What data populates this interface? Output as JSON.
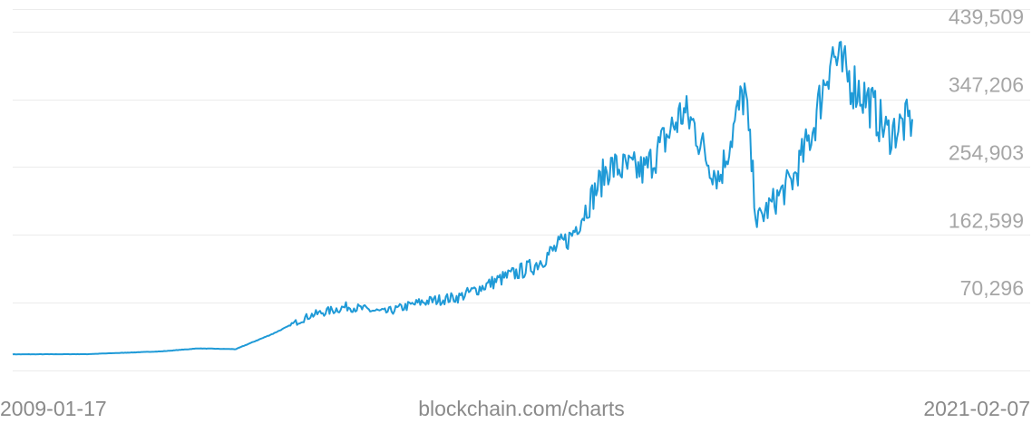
{
  "chart_data": {
    "type": "line",
    "title": "",
    "xlabel": "",
    "ylabel": "",
    "x_start_label": "2009-01-17",
    "x_end_label": "2021-02-07",
    "source_label": "blockchain.com/charts",
    "ylim": [
      -22007,
      470000
    ],
    "yticks": [
      70296,
      162599,
      254903,
      347206,
      439509
    ],
    "ytick_labels": [
      "70,296",
      "162,599",
      "254,903",
      "347,206",
      "439,509"
    ],
    "grid": true,
    "legend": "none",
    "line_color": "#1f9ad7",
    "x": [
      "2009-01",
      "2010-01",
      "2011-01",
      "2011-07",
      "2012-01",
      "2012-07",
      "2013-01",
      "2013-07",
      "2014-01",
      "2014-07",
      "2015-01",
      "2015-07",
      "2016-01",
      "2016-07",
      "2017-01",
      "2017-07",
      "2018-01",
      "2018-03",
      "2018-05",
      "2018-07",
      "2018-11",
      "2019-01",
      "2019-03",
      "2019-07",
      "2019-10",
      "2020-01",
      "2020-03",
      "2020-07",
      "2020-10",
      "2021-02"
    ],
    "values": [
      0,
      200,
      4000,
      8000,
      7000,
      28000,
      53000,
      65000,
      57000,
      71000,
      78000,
      100000,
      120000,
      160000,
      255000,
      250000,
      330000,
      310000,
      265000,
      240000,
      360000,
      180000,
      200000,
      240000,
      305000,
      410000,
      385000,
      345000,
      300000,
      320000
    ]
  }
}
